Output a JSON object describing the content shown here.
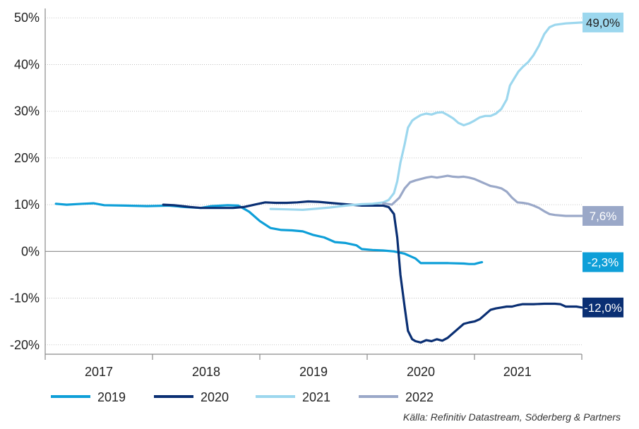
{
  "chart_data": {
    "type": "line",
    "title": "",
    "xlabel": "",
    "ylabel": "",
    "ylim": [
      -22,
      52
    ],
    "xlim": [
      2016.55,
      2021.55
    ],
    "grid": true,
    "legend_position": "bottom",
    "y_ticks": [
      {
        "value": 50,
        "label": "50%"
      },
      {
        "value": 40,
        "label": "40%"
      },
      {
        "value": 30,
        "label": "30%"
      },
      {
        "value": 20,
        "label": "20%"
      },
      {
        "value": 10,
        "label": "10%"
      },
      {
        "value": 0,
        "label": "0%"
      },
      {
        "value": -10,
        "label": "-10%"
      },
      {
        "value": -20,
        "label": "-20%"
      }
    ],
    "x_tick_boundaries": [
      2016.55,
      2017.55,
      2018.55,
      2019.55,
      2020.55,
      2021.55
    ],
    "x_labels": [
      {
        "x": 2017.05,
        "label": "2017"
      },
      {
        "x": 2018.05,
        "label": "2018"
      },
      {
        "x": 2019.05,
        "label": "2019"
      },
      {
        "x": 2020.05,
        "label": "2020"
      },
      {
        "x": 2020.95,
        "label": "2021"
      }
    ],
    "series": [
      {
        "name": "2019",
        "color": "#0e9fd8",
        "end_label": "-2,3%",
        "end_label_value": -2.3,
        "end_label_bg": "#0e9fd8",
        "end_label_fg": "#ffffff",
        "points": [
          [
            2016.65,
            10.2
          ],
          [
            2016.75,
            10.0
          ],
          [
            2016.9,
            10.2
          ],
          [
            2017.0,
            10.3
          ],
          [
            2017.1,
            9.9
          ],
          [
            2017.3,
            9.8
          ],
          [
            2017.5,
            9.7
          ],
          [
            2017.7,
            9.8
          ],
          [
            2017.85,
            9.5
          ],
          [
            2018.0,
            9.3
          ],
          [
            2018.1,
            9.7
          ],
          [
            2018.25,
            9.9
          ],
          [
            2018.35,
            9.8
          ],
          [
            2018.45,
            8.5
          ],
          [
            2018.55,
            6.5
          ],
          [
            2018.65,
            5.0
          ],
          [
            2018.75,
            4.6
          ],
          [
            2018.85,
            4.5
          ],
          [
            2018.95,
            4.3
          ],
          [
            2019.05,
            3.5
          ],
          [
            2019.15,
            3.0
          ],
          [
            2019.25,
            2.0
          ],
          [
            2019.35,
            1.8
          ],
          [
            2019.45,
            1.3
          ],
          [
            2019.5,
            0.5
          ],
          [
            2019.6,
            0.3
          ],
          [
            2019.7,
            0.2
          ],
          [
            2019.8,
            0.0
          ],
          [
            2019.9,
            -0.5
          ],
          [
            2020.0,
            -1.5
          ],
          [
            2020.05,
            -2.5
          ],
          [
            2020.15,
            -2.5
          ],
          [
            2020.3,
            -2.5
          ],
          [
            2020.45,
            -2.6
          ],
          [
            2020.5,
            -2.7
          ],
          [
            2020.55,
            -2.7
          ],
          [
            2020.6,
            -2.4
          ],
          [
            2020.62,
            -2.3
          ]
        ]
      },
      {
        "name": "2020",
        "color": "#0a2f73",
        "end_label": "-12,0%",
        "end_label_value": -12.0,
        "end_label_bg": "#0a2f73",
        "end_label_fg": "#ffffff",
        "points": [
          [
            2017.65,
            10.0
          ],
          [
            2017.75,
            9.9
          ],
          [
            2017.9,
            9.5
          ],
          [
            2018.0,
            9.3
          ],
          [
            2018.15,
            9.3
          ],
          [
            2018.3,
            9.3
          ],
          [
            2018.4,
            9.5
          ],
          [
            2018.5,
            10.0
          ],
          [
            2018.6,
            10.5
          ],
          [
            2018.7,
            10.4
          ],
          [
            2018.8,
            10.4
          ],
          [
            2018.9,
            10.5
          ],
          [
            2019.0,
            10.7
          ],
          [
            2019.1,
            10.6
          ],
          [
            2019.2,
            10.4
          ],
          [
            2019.3,
            10.2
          ],
          [
            2019.4,
            10.0
          ],
          [
            2019.5,
            9.8
          ],
          [
            2019.6,
            9.8
          ],
          [
            2019.7,
            9.8
          ],
          [
            2019.75,
            9.5
          ],
          [
            2019.8,
            8.0
          ],
          [
            2019.83,
            3.0
          ],
          [
            2019.86,
            -5.0
          ],
          [
            2019.9,
            -12.0
          ],
          [
            2019.93,
            -17.0
          ],
          [
            2019.97,
            -18.8
          ],
          [
            2020.0,
            -19.2
          ],
          [
            2020.05,
            -19.5
          ],
          [
            2020.1,
            -19.0
          ],
          [
            2020.15,
            -19.2
          ],
          [
            2020.2,
            -18.8
          ],
          [
            2020.25,
            -19.1
          ],
          [
            2020.3,
            -18.5
          ],
          [
            2020.35,
            -17.5
          ],
          [
            2020.4,
            -16.5
          ],
          [
            2020.45,
            -15.5
          ],
          [
            2020.5,
            -15.2
          ],
          [
            2020.55,
            -15.0
          ],
          [
            2020.6,
            -14.5
          ],
          [
            2020.65,
            -13.5
          ],
          [
            2020.7,
            -12.5
          ],
          [
            2020.75,
            -12.2
          ],
          [
            2020.8,
            -12.0
          ],
          [
            2020.85,
            -11.8
          ],
          [
            2020.9,
            -11.8
          ],
          [
            2020.95,
            -11.5
          ],
          [
            2021.0,
            -11.3
          ],
          [
            2021.1,
            -11.3
          ],
          [
            2021.2,
            -11.2
          ],
          [
            2021.3,
            -11.2
          ],
          [
            2021.35,
            -11.3
          ],
          [
            2021.4,
            -11.8
          ],
          [
            2021.5,
            -11.8
          ],
          [
            2021.55,
            -12.0
          ]
        ]
      },
      {
        "name": "2021",
        "color": "#9cd7ee",
        "end_label": "49,0%",
        "end_label_value": 49.0,
        "end_label_bg": "#9cd7ee",
        "end_label_fg": "#222222",
        "points": [
          [
            2018.65,
            9.1
          ],
          [
            2018.8,
            9.0
          ],
          [
            2018.95,
            8.9
          ],
          [
            2019.05,
            9.1
          ],
          [
            2019.2,
            9.4
          ],
          [
            2019.35,
            9.8
          ],
          [
            2019.5,
            10.1
          ],
          [
            2019.6,
            10.2
          ],
          [
            2019.7,
            10.5
          ],
          [
            2019.75,
            11.0
          ],
          [
            2019.8,
            12.5
          ],
          [
            2019.83,
            15.0
          ],
          [
            2019.86,
            19.0
          ],
          [
            2019.9,
            23.0
          ],
          [
            2019.93,
            26.5
          ],
          [
            2019.97,
            28.0
          ],
          [
            2020.0,
            28.5
          ],
          [
            2020.05,
            29.2
          ],
          [
            2020.1,
            29.5
          ],
          [
            2020.15,
            29.3
          ],
          [
            2020.2,
            29.7
          ],
          [
            2020.25,
            29.8
          ],
          [
            2020.3,
            29.2
          ],
          [
            2020.35,
            28.5
          ],
          [
            2020.4,
            27.5
          ],
          [
            2020.45,
            27.0
          ],
          [
            2020.5,
            27.4
          ],
          [
            2020.55,
            28.0
          ],
          [
            2020.6,
            28.7
          ],
          [
            2020.65,
            29.0
          ],
          [
            2020.7,
            29.0
          ],
          [
            2020.75,
            29.5
          ],
          [
            2020.8,
            30.5
          ],
          [
            2020.85,
            32.5
          ],
          [
            2020.88,
            35.5
          ],
          [
            2020.92,
            37.0
          ],
          [
            2020.96,
            38.5
          ],
          [
            2021.0,
            39.5
          ],
          [
            2021.05,
            40.5
          ],
          [
            2021.1,
            42.0
          ],
          [
            2021.15,
            44.0
          ],
          [
            2021.2,
            46.5
          ],
          [
            2021.25,
            48.0
          ],
          [
            2021.3,
            48.5
          ],
          [
            2021.4,
            48.8
          ],
          [
            2021.55,
            49.0
          ]
        ]
      },
      {
        "name": "2022",
        "color": "#9aa8c8",
        "end_label": "7,6%",
        "end_label_value": 7.6,
        "end_label_bg": "#9aa8c8",
        "end_label_fg": "#ffffff",
        "points": [
          [
            2019.7,
            10.3
          ],
          [
            2019.78,
            10.0
          ],
          [
            2019.85,
            11.5
          ],
          [
            2019.9,
            13.5
          ],
          [
            2019.95,
            14.8
          ],
          [
            2020.0,
            15.2
          ],
          [
            2020.05,
            15.5
          ],
          [
            2020.1,
            15.8
          ],
          [
            2020.15,
            16.0
          ],
          [
            2020.2,
            15.8
          ],
          [
            2020.25,
            16.0
          ],
          [
            2020.3,
            16.2
          ],
          [
            2020.35,
            16.0
          ],
          [
            2020.4,
            15.9
          ],
          [
            2020.45,
            16.0
          ],
          [
            2020.5,
            15.8
          ],
          [
            2020.55,
            15.5
          ],
          [
            2020.6,
            15.0
          ],
          [
            2020.65,
            14.5
          ],
          [
            2020.7,
            14.0
          ],
          [
            2020.75,
            13.8
          ],
          [
            2020.8,
            13.5
          ],
          [
            2020.85,
            12.8
          ],
          [
            2020.9,
            11.5
          ],
          [
            2020.95,
            10.5
          ],
          [
            2021.0,
            10.4
          ],
          [
            2021.05,
            10.2
          ],
          [
            2021.1,
            9.8
          ],
          [
            2021.15,
            9.3
          ],
          [
            2021.2,
            8.6
          ],
          [
            2021.25,
            8.0
          ],
          [
            2021.3,
            7.8
          ],
          [
            2021.4,
            7.6
          ],
          [
            2021.55,
            7.6
          ]
        ]
      }
    ],
    "source_text": "Källa: Refinitiv Datastream, Söderberg & Partners"
  }
}
